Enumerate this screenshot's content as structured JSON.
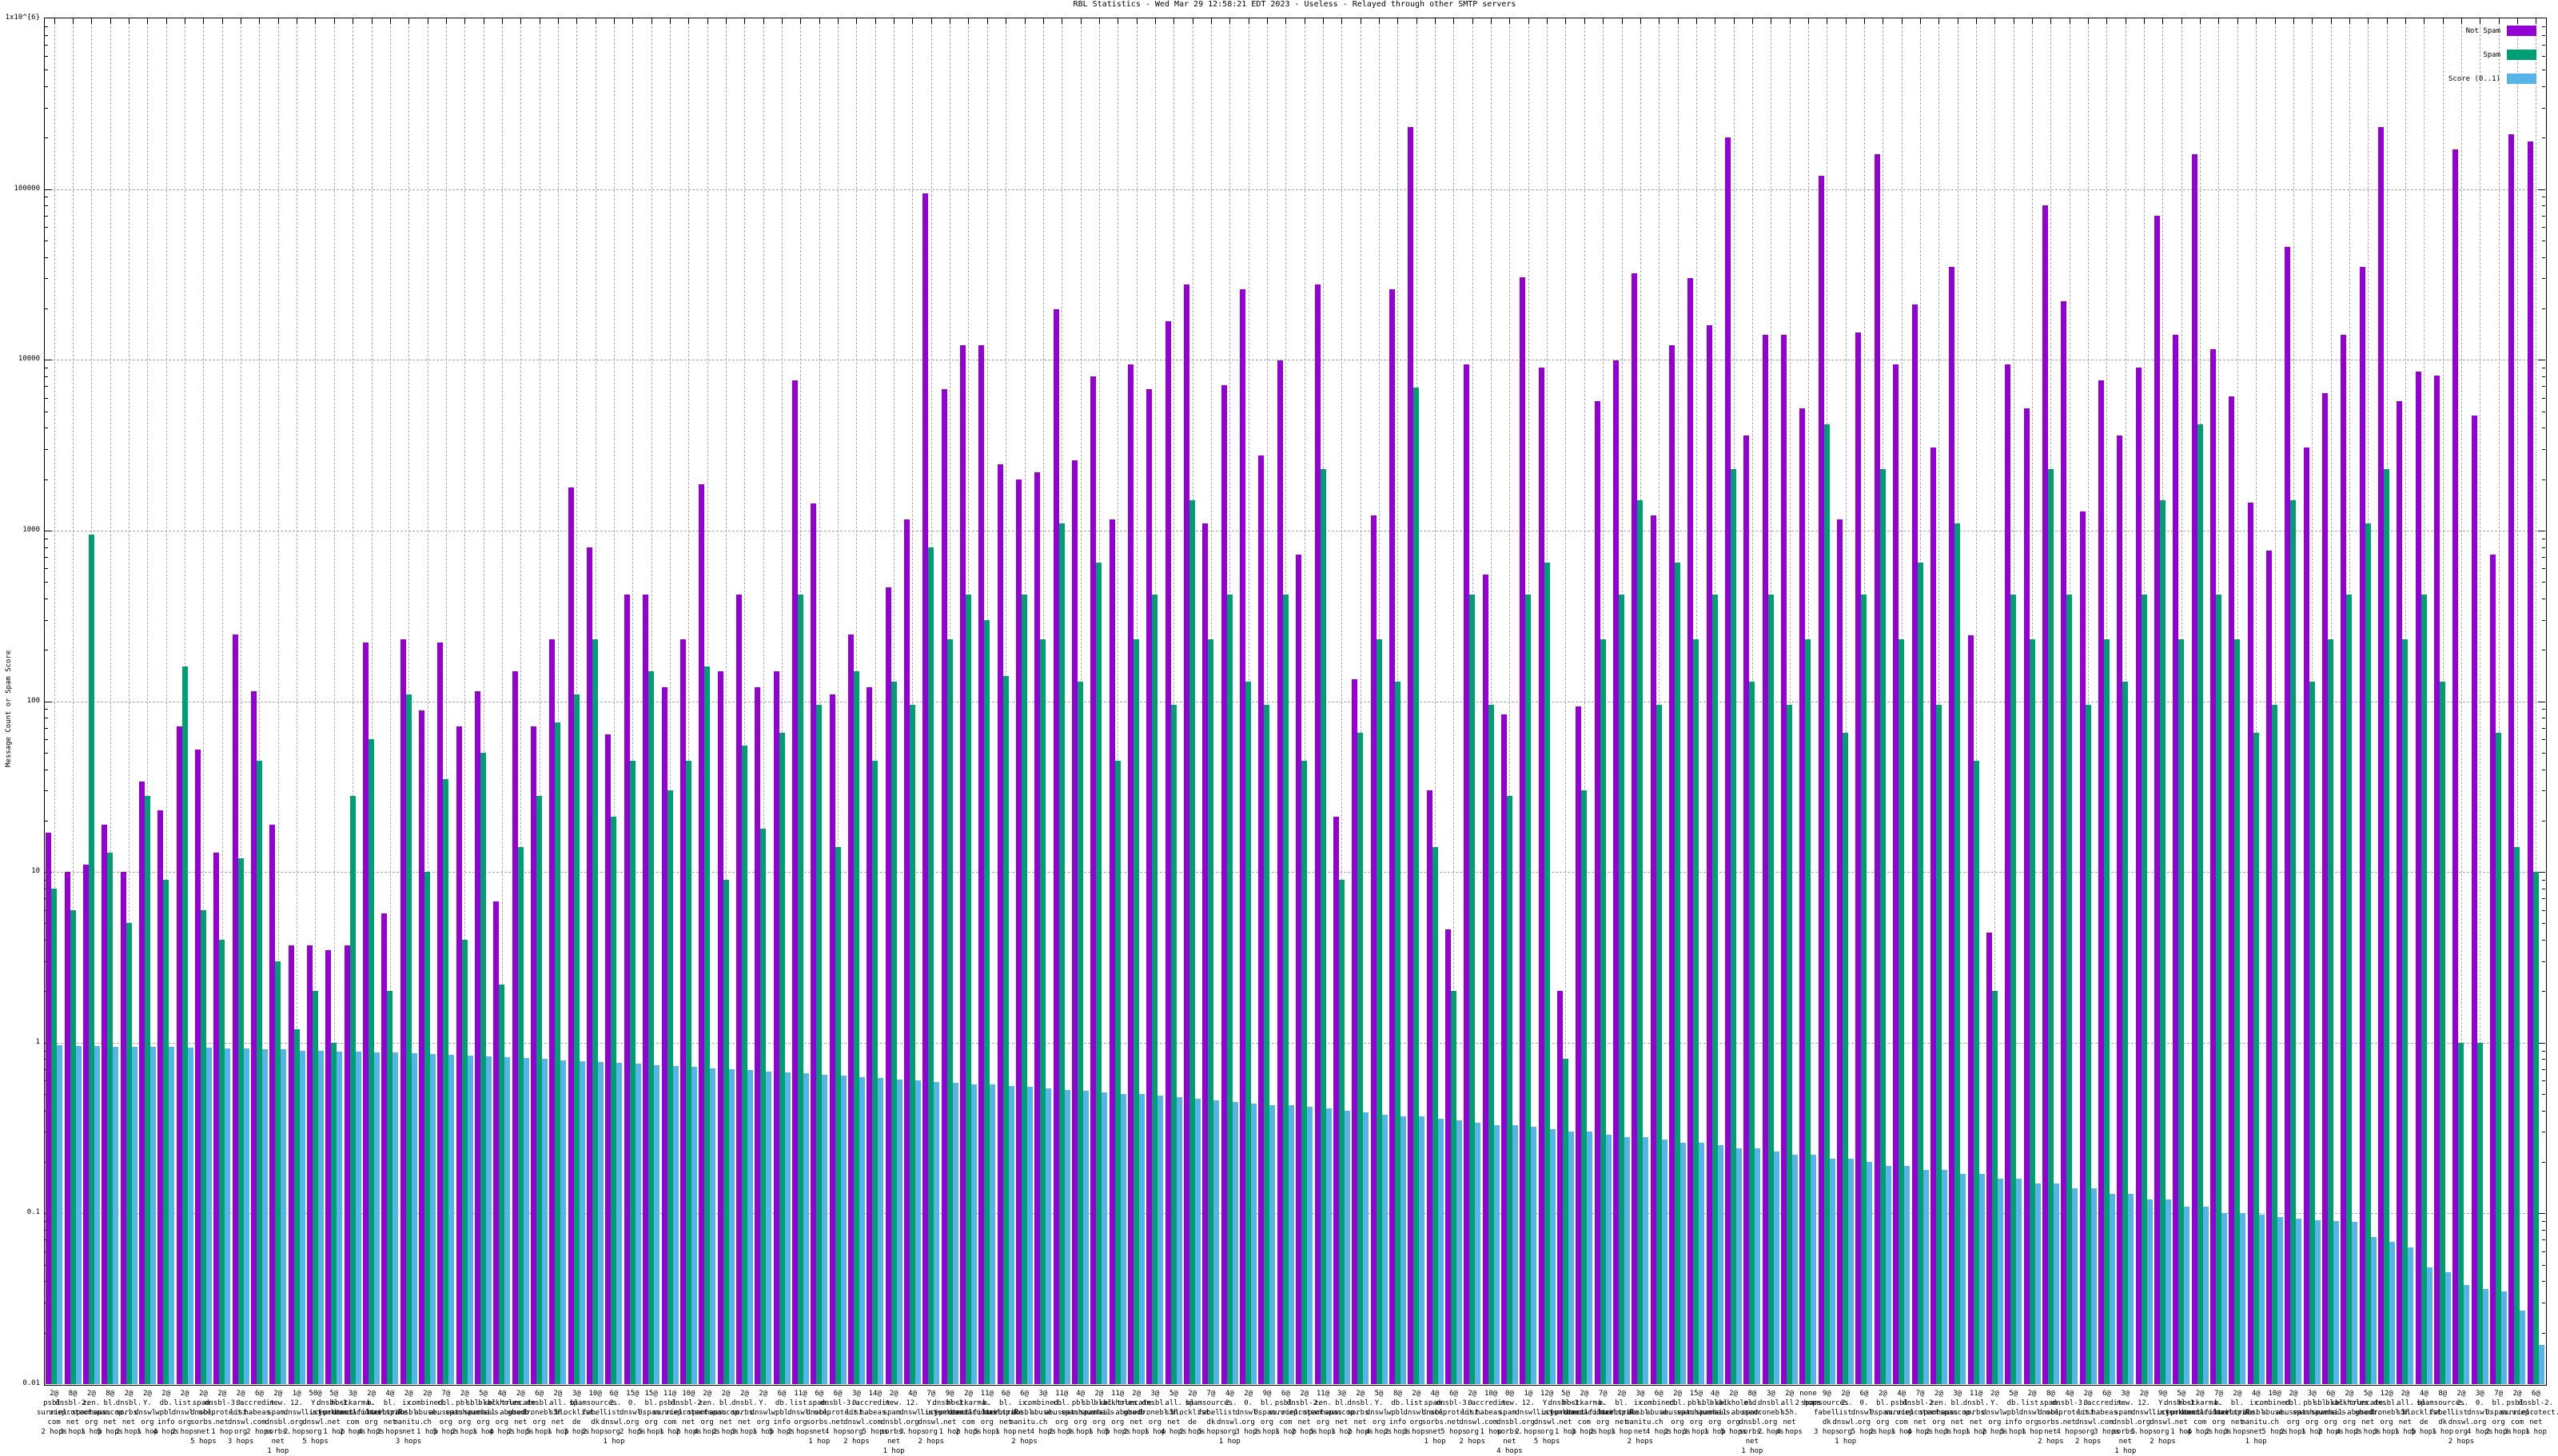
{
  "chart_data": {
    "type": "bar",
    "title": "RBL Statistics - Wed Mar 29 12:58:21 EDT 2023 - Useless - Relayed through other SMTP servers",
    "ylabel": "Message Count or Spam Score",
    "xlabel": "",
    "yscale": "log",
    "ylim": [
      0.01,
      1000000
    ],
    "grid": true,
    "ytick_values": [
      1000000,
      100000,
      10000,
      1000,
      100,
      10,
      1,
      0.1,
      0.01
    ],
    "ytick_labels": [
      "1x10^{6}",
      "100000",
      "10000",
      "1000",
      "100",
      "10",
      "1",
      "0.1",
      "0.01"
    ],
    "legend": {
      "position": "top-right",
      "entries": [
        {
          "label": "Not Spam",
          "color": "#9400d3"
        },
        {
          "label": "Spam",
          "color": "#009e73"
        },
        {
          "label": "Score (0..1)",
          "color": "#56b4e9"
        }
      ]
    },
    "colors": {
      "not_spam": "#9400d3",
      "spam": "#009e73",
      "score": "#56b4e9"
    },
    "bar_columns": [
      "count",
      "rbl",
      "hops",
      "not_spam",
      "spam",
      "score"
    ],
    "bars": [
      [
        "2@",
        "psbl.surriel.com",
        "2 hops",
        17,
        8,
        0.97
      ],
      [
        "8@",
        "dnsbl-2.uceprotect.net",
        "3 hops",
        10,
        6,
        0.96
      ],
      [
        "2@",
        "zen.spamhaus.org",
        "1 hop",
        11,
        950,
        0.96
      ],
      [
        "8@",
        "bl.spamcop.net",
        "5 hops",
        19,
        13,
        0.95
      ],
      [
        "2@",
        "dnsbl.sorbs.net",
        "2 hops",
        10,
        5,
        0.95
      ],
      [
        "2@",
        "Y.dnswl.org",
        "1 hop",
        34,
        28,
        0.94
      ],
      [
        "2@",
        "db.wpbl.info",
        "4 hops",
        23,
        9,
        0.94
      ],
      [
        "2@",
        "list.dnswl.org",
        "2 hops",
        71,
        160,
        0.93
      ],
      [
        "2@",
        "spam.dnsbl.sorbs.net",
        "5 hops",
        52,
        6,
        0.93
      ],
      [
        "2@",
        "dnsbl-3.uceprotect.net",
        "1 hop",
        13,
        4,
        0.92
      ],
      [
        "2@",
        "0.list.dnswl.org",
        "3 hops",
        245,
        12,
        0.92
      ],
      [
        "6@",
        "accredit.habeas.com",
        "2 hops",
        115,
        45,
        0.91
      ],
      [
        "2@",
        "new.spam.dnsbl.sorbs.net",
        "1 hop",
        19,
        3,
        0.91
      ],
      [
        "1@",
        "12.dnswl.org",
        "2 hops",
        3.7,
        1.2,
        0.9
      ],
      [
        "50@",
        "Y.list.dnswl.org",
        "5 hops",
        3.7,
        2,
        0.9
      ],
      [
        "5@",
        "dnsbl-1.uceprotect.net",
        "1 hop",
        3.5,
        1,
        0.89
      ],
      [
        "3@",
        "hostkarma.junkemailfilter.com",
        "2 hops",
        3.7,
        28,
        0.89
      ],
      [
        "2@",
        "b.barracudacentral.org",
        "4 hops",
        220,
        60,
        0.88
      ],
      [
        "4@",
        "bl.mailspike.net",
        "2 hops",
        5.7,
        2,
        0.88
      ],
      [
        "2@",
        "ix.dnsbl.manitu.net",
        "3 hops",
        230,
        110,
        0.87
      ],
      [
        "2@",
        "combined.abuse.ch",
        "1 hop",
        88,
        10,
        0.86
      ],
      [
        "7@",
        "cbl.abuseat.org",
        "5 hops",
        220,
        35,
        0.85
      ],
      [
        "2@",
        "pbl.spamhaus.org",
        "2 hops",
        71,
        4,
        0.84
      ],
      [
        "5@",
        "sbl-xbl.spamhaus.org",
        "1 hop",
        115,
        50,
        0.83
      ],
      [
        "4@",
        "blackholes.mail-abuse.org",
        "4 hops",
        6.7,
        2.2,
        0.82
      ],
      [
        "2@",
        "truncate.gbudb.net",
        "2 hops",
        150,
        14,
        0.81
      ],
      [
        "6@",
        "dnsbl.dronebl.org",
        "5 hops",
        71,
        28,
        0.8
      ],
      [
        "2@",
        "all.s5h.net",
        "1 hop",
        230,
        75,
        0.79
      ],
      [
        "3@",
        "bl.blocklist.de",
        "3 hops",
        1780,
        110,
        0.78
      ],
      [
        "10@",
        "spamsources.fabel.dk",
        "2 hops",
        800,
        230,
        0.77
      ],
      [
        "6@",
        "2.list.dnswl.org",
        "1 hop",
        64,
        21,
        0.76
      ],
      [
        "15@",
        "0.dnswl.org",
        "2 hops",
        420,
        45,
        0.75
      ],
      [
        "15@",
        "bl.0spam.org",
        "5 hops",
        420,
        150,
        0.74
      ],
      [
        "11@",
        "psbl.surriel.com",
        "1 hop",
        121,
        30,
        0.73
      ],
      [
        "10@",
        "dnsbl-2.uceprotect.net",
        "2 hops",
        231,
        45,
        0.72
      ],
      [
        "2@",
        "zen.spamhaus.org",
        "4 hops",
        1870,
        160,
        0.71
      ],
      [
        "2@",
        "bl.spamcop.net",
        "2 hops",
        150,
        9,
        0.7
      ],
      [
        "2@",
        "dnsbl.sorbs.net",
        "3 hops",
        420,
        55,
        0.69
      ],
      [
        "2@",
        "Y.dnswl.org",
        "1 hop",
        121,
        18,
        0.68
      ],
      [
        "6@",
        "db.wpbl.info",
        "5 hops",
        150,
        65,
        0.67
      ],
      [
        "11@",
        "list.dnswl.org",
        "2 hops",
        7600,
        420,
        0.66
      ],
      [
        "6@",
        "spam.dnsbl.sorbs.net",
        "1 hop",
        1440,
        95,
        0.65
      ],
      [
        "6@",
        "dnsbl-3.uceprotect.net",
        "4 hops",
        110,
        14,
        0.64
      ],
      [
        "3@",
        "0.list.dnswl.org",
        "2 hops",
        245,
        150,
        0.63
      ],
      [
        "14@",
        "accredit.habeas.com",
        "5 hops",
        121,
        45,
        0.62
      ],
      [
        "2@",
        "new.spam.dnsbl.sorbs.net",
        "1 hop",
        465,
        130,
        0.61
      ],
      [
        "4@",
        "12.dnswl.org",
        "3 hops",
        1160,
        95,
        0.6
      ],
      [
        "7@",
        "Y.list.dnswl.org",
        "2 hops",
        94000,
        800,
        0.59
      ],
      [
        "9@",
        "dnsbl-1.uceprotect.net",
        "1 hop",
        6700,
        230,
        0.58
      ],
      [
        "2@",
        "hostkarma.junkemailfilter.com",
        "2 hops",
        12200,
        420,
        0.57
      ],
      [
        "11@",
        "b.barracudacentral.org",
        "5 hops",
        12200,
        300,
        0.57
      ],
      [
        "6@",
        "bl.mailspike.net",
        "1 hop",
        2450,
        140,
        0.56
      ],
      [
        "6@",
        "ix.dnsbl.manitu.net",
        "2 hops",
        1980,
        420,
        0.55
      ],
      [
        "3@",
        "combined.abuse.ch",
        "4 hops",
        2200,
        230,
        0.54
      ],
      [
        "11@",
        "cbl.abuseat.org",
        "2 hops",
        19800,
        1100,
        0.53
      ],
      [
        "4@",
        "pbl.spamhaus.org",
        "3 hops",
        2590,
        130,
        0.52
      ],
      [
        "2@",
        "sbl-xbl.spamhaus.org",
        "1 hop",
        8000,
        650,
        0.51
      ],
      [
        "11@",
        "blackholes.mail-abuse.org",
        "5 hops",
        1160,
        45,
        0.5
      ],
      [
        "2@",
        "truncate.gbudb.net",
        "2 hops",
        9400,
        230,
        0.5
      ],
      [
        "3@",
        "dnsbl.dronebl.org",
        "1 hop",
        6700,
        420,
        0.49
      ],
      [
        "5@",
        "all.s5h.net",
        "4 hops",
        16900,
        95,
        0.48
      ],
      [
        "2@",
        "bl.blocklist.de",
        "2 hops",
        27500,
        1500,
        0.47
      ],
      [
        "7@",
        "spamsources.fabel.dk",
        "5 hops",
        1100,
        230,
        0.46
      ],
      [
        "4@",
        "2.list.dnswl.org",
        "1 hop",
        7100,
        420,
        0.45
      ],
      [
        "2@",
        "0.dnswl.org",
        "3 hops",
        26000,
        130,
        0.44
      ],
      [
        "9@",
        "bl.0spam.org",
        "2 hops",
        2740,
        95,
        0.43
      ],
      [
        "6@",
        "psbl.surriel.com",
        "1 hop",
        9900,
        420,
        0.43
      ],
      [
        "2@",
        "dnsbl-2.uceprotect.net",
        "2 hops",
        720,
        45,
        0.42
      ],
      [
        "11@",
        "zen.spamhaus.org",
        "5 hops",
        27500,
        2300,
        0.41
      ],
      [
        "3@",
        "bl.spamcop.net",
        "1 hop",
        21,
        9,
        0.4
      ],
      [
        "2@",
        "dnsbl.sorbs.net",
        "2 hops",
        135,
        65,
        0.39
      ],
      [
        "5@",
        "Y.dnswl.org",
        "4 hops",
        1220,
        230,
        0.38
      ],
      [
        "8@",
        "db.wpbl.info",
        "2 hops",
        26000,
        130,
        0.37
      ],
      [
        "2@",
        "list.dnswl.org",
        "3 hops",
        230000,
        6900,
        0.37
      ],
      [
        "4@",
        "spam.dnsbl.sorbs.net",
        "1 hop",
        30,
        14,
        0.36
      ],
      [
        "6@",
        "dnsbl-3.uceprotect.net",
        "5 hops",
        4.6,
        2,
        0.35
      ],
      [
        "2@",
        "0.list.dnswl.org",
        "2 hops",
        9400,
        420,
        0.34
      ],
      [
        "10@",
        "accredit.habeas.com",
        "1 hop",
        550,
        95,
        0.33
      ],
      [
        "0@",
        "new.spam.dnsbl.sorbs.net",
        "4 hops",
        84,
        28,
        0.33
      ],
      [
        "1@",
        "12.dnswl.org",
        "2 hops",
        30300,
        420,
        0.32
      ],
      [
        "12@",
        "Y.list.dnswl.org",
        "5 hops",
        9000,
        650,
        0.31
      ],
      [
        "5@",
        "dnsbl-1.uceprotect.net",
        "1 hop",
        2,
        0.8,
        0.3
      ],
      [
        "2@",
        "hostkarma.junkemailfilter.com",
        "3 hops",
        93,
        30,
        0.3
      ],
      [
        "7@",
        "b.barracudacentral.org",
        "2 hops",
        5700,
        230,
        0.29
      ],
      [
        "2@",
        "bl.mailspike.net",
        "1 hop",
        9900,
        420,
        0.28
      ],
      [
        "3@",
        "ix.dnsbl.manitu.net",
        "2 hops",
        32000,
        1500,
        0.28
      ],
      [
        "6@",
        "combined.abuse.ch",
        "4 hops",
        1230,
        95,
        0.27
      ],
      [
        "2@",
        "cbl.abuseat.org",
        "2 hops",
        12200,
        650,
        0.26
      ],
      [
        "15@",
        "pbl.spamhaus.org",
        "3 hops",
        30000,
        230,
        0.26
      ],
      [
        "4@",
        "sbl-xbl.spamhaus.org",
        "1 hop",
        16000,
        420,
        0.25
      ],
      [
        "2@",
        "blackholes.mail-abuse.org",
        "5 hops",
        200000,
        2300,
        0.24
      ],
      [
        "8@",
        "old.spam.dnsbl.sorbs.net",
        "1 hop",
        3600,
        130,
        0.24
      ],
      [
        "3@",
        "dnsbl.dronebl.org",
        "2 hops",
        14000,
        420,
        0.23
      ],
      [
        "2@",
        "all.s5h.net",
        "4 hops",
        14000,
        95,
        0.22
      ],
      [
        "none",
        "",
        "2 hops",
        5200,
        230,
        0.22
      ],
      [
        "9@",
        "spamsources.fabel.dk",
        "3 hops",
        120000,
        4200,
        0.21
      ],
      [
        "2@",
        "2.list.dnswl.org",
        "1 hop",
        1160,
        65,
        0.21
      ],
      [
        "6@",
        "0.dnswl.org",
        "5 hops",
        14500,
        420,
        0.2
      ],
      [
        "2@",
        "bl.0spam.org",
        "2 hops",
        160000,
        2300,
        0.19
      ],
      [
        "4@",
        "psbl.surriel.com",
        "1 hop",
        9400,
        230,
        0.19
      ],
      [
        "7@",
        "dnsbl-2.uceprotect.net",
        "4 hops",
        21000,
        650,
        0.18
      ],
      [
        "2@",
        "zen.spamhaus.org",
        "2 hops",
        3050,
        95,
        0.18
      ],
      [
        "3@",
        "bl.spamcop.net",
        "3 hops",
        35000,
        1100,
        0.17
      ],
      [
        "11@",
        "dnsbl.sorbs.net",
        "1 hop",
        244,
        45,
        0.17
      ],
      [
        "2@",
        "Y.dnswl.org",
        "2 hops",
        4.4,
        2,
        0.16
      ],
      [
        "5@",
        "db.wpbl.info",
        "5 hops",
        9400,
        420,
        0.16
      ],
      [
        "2@",
        "list.dnswl.org",
        "1 hop",
        5200,
        230,
        0.15
      ],
      [
        "8@",
        "spam.dnsbl.sorbs.net",
        "2 hops",
        80000,
        2300,
        0.15
      ],
      [
        "4@",
        "dnsbl-3.uceprotect.net",
        "4 hops",
        22000,
        420,
        0.14
      ],
      [
        "2@",
        "0.list.dnswl.org",
        "2 hops",
        1300,
        95,
        0.14
      ],
      [
        "6@",
        "accredit.habeas.com",
        "3 hops",
        7600,
        230,
        0.13
      ],
      [
        "3@",
        "new.spam.dnsbl.sorbs.net",
        "1 hop",
        3600,
        130,
        0.13
      ],
      [
        "2@",
        "12.dnswl.org",
        "5 hops",
        9000,
        420,
        0.12
      ],
      [
        "9@",
        "Y.list.dnswl.org",
        "2 hops",
        70000,
        1500,
        0.12
      ],
      [
        "5@",
        "dnsbl-1.uceprotect.net",
        "1 hop",
        14000,
        230,
        0.11
      ],
      [
        "2@",
        "hostkarma.junkemailfilter.com",
        "4 hops",
        160000,
        4200,
        0.11
      ],
      [
        "7@",
        "b.barracudacentral.org",
        "2 hops",
        11500,
        420,
        0.1
      ],
      [
        "2@",
        "bl.mailspike.net",
        "3 hops",
        6100,
        230,
        0.1
      ],
      [
        "4@",
        "ix.dnsbl.manitu.net",
        "1 hop",
        1450,
        65,
        0.098
      ],
      [
        "10@",
        "combined.abuse.ch",
        "5 hops",
        760,
        95,
        0.095
      ],
      [
        "2@",
        "cbl.abuseat.org",
        "2 hops",
        46000,
        1500,
        0.093
      ],
      [
        "3@",
        "pbl.spamhaus.org",
        "1 hop",
        3050,
        130,
        0.091
      ],
      [
        "6@",
        "sbl-xbl.spamhaus.org",
        "2 hops",
        6400,
        230,
        0.09
      ],
      [
        "2@",
        "blackholes.mail-abuse.org",
        "4 hops",
        14000,
        420,
        0.089
      ],
      [
        "5@",
        "truncate.gbudb.net",
        "2 hops",
        35000,
        1100,
        0.073
      ],
      [
        "12@",
        "dnsbl.dronebl.org",
        "3 hops",
        230000,
        2300,
        0.068
      ],
      [
        "2@",
        "all.s5h.net",
        "1 hop",
        5700,
        230,
        0.063
      ],
      [
        "4@",
        "bl.blocklist.de",
        "5 hops",
        8500,
        420,
        0.048
      ],
      [
        "8@",
        "spamsources.fabel.dk",
        "1 hop",
        8100,
        130,
        0.045
      ],
      [
        "2@",
        "2.list.dnswl.org",
        "2 hops",
        170000,
        1,
        0.038
      ],
      [
        "3@",
        "0.dnswl.org",
        "4 hops",
        4700,
        1,
        0.036
      ],
      [
        "7@",
        "bl.0spam.org",
        "2 hops",
        720,
        65,
        0.035
      ],
      [
        "2@",
        "psbl.surriel.com",
        "3 hops",
        210000,
        14,
        0.027
      ],
      [
        "6@",
        "dnsbl-2.uceprotect.net",
        "1 hop",
        190000,
        10,
        0.017
      ]
    ]
  }
}
